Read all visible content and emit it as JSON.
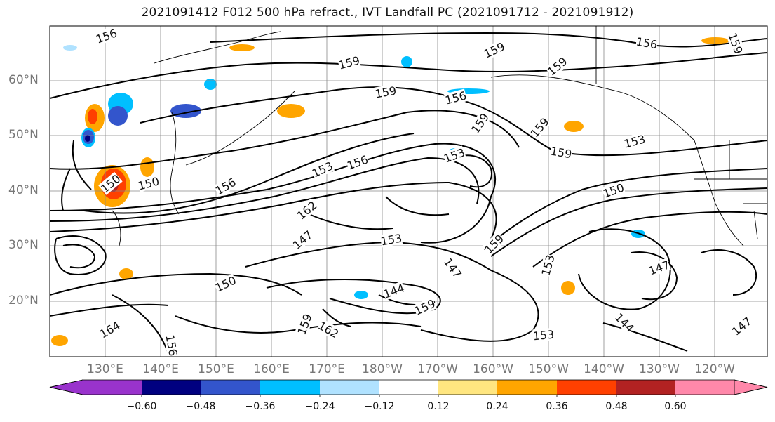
{
  "title": "2021091412 F012 500 hPa refract., IVT Landfall PC (2021091712 - 2021091912)",
  "lat_labels": [
    "60°N",
    "50°N",
    "40°N",
    "30°N",
    "20°N"
  ],
  "lon_labels": [
    "130°E",
    "140°E",
    "150°E",
    "160°E",
    "170°E",
    "180°W",
    "170°W",
    "160°W",
    "150°W",
    "140°W",
    "130°W",
    "120°W"
  ],
  "contour_labels": [
    "156",
    "159",
    "159",
    "159",
    "156",
    "159",
    "159",
    "156",
    "159",
    "159",
    "153",
    "156",
    "153",
    "159",
    "150",
    "150",
    "156",
    "153",
    "162",
    "147",
    "153",
    "159",
    "147",
    "153",
    "147",
    "150",
    "144",
    "159",
    "162",
    "156",
    "164",
    "144",
    "153",
    "147",
    "159",
    "150"
  ],
  "colorbar": {
    "colors": [
      "#9933cc",
      "#000080",
      "#3355cc",
      "#00bfff",
      "#b0e2ff",
      "#ffffff",
      "#ffe680",
      "#ffa500",
      "#ff4000",
      "#b22222",
      "#ff88aa"
    ],
    "tick_labels": [
      "−0.60",
      "−0.48",
      "−0.36",
      "−0.24",
      "−0.12",
      "0.12",
      "0.24",
      "0.36",
      "0.48",
      "0.60"
    ]
  }
}
